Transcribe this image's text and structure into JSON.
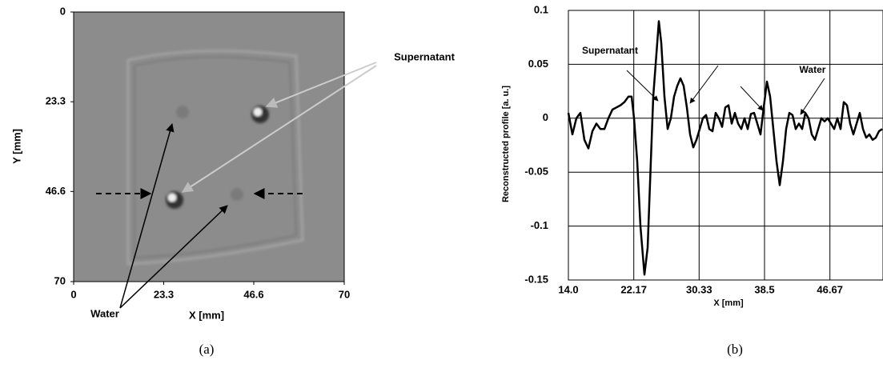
{
  "chart_data": [
    {
      "type": "image",
      "caption": "(a)",
      "xlabel": "X [mm]",
      "ylabel": "Y [mm]",
      "xlim": [
        0,
        70
      ],
      "ylim": [
        0,
        70
      ],
      "y_inverted": true,
      "xticks": [
        0,
        23.3,
        46.6,
        70
      ],
      "yticks": [
        0,
        23.3,
        46.6,
        70
      ],
      "annotations": [
        "Supernatant",
        "Water"
      ]
    },
    {
      "type": "line",
      "caption": "(b)",
      "xlabel": "X [mm]",
      "ylabel": "Reconstructed profile [a. u.]",
      "xlim": [
        14,
        53.3
      ],
      "ylim": [
        -0.15,
        0.1
      ],
      "xticks": [
        {
          "value": 14,
          "label": "14.0"
        },
        22.17,
        30.33,
        38.5,
        46.67
      ],
      "yticks": [
        0.1,
        0.05,
        0,
        -0.05,
        -0.1,
        -0.15
      ],
      "grid": true,
      "annotations": [
        "Supernatant",
        "Water"
      ],
      "x": [
        14.0,
        14.5,
        15.0,
        15.5,
        16.0,
        16.5,
        17.0,
        17.5,
        18.0,
        18.5,
        19.0,
        19.5,
        20.0,
        20.5,
        21.0,
        21.5,
        21.9,
        22.2,
        22.6,
        23.0,
        23.5,
        23.9,
        24.3,
        24.6,
        25.0,
        25.3,
        25.6,
        26.0,
        26.4,
        26.8,
        27.2,
        27.6,
        28.0,
        28.4,
        28.8,
        29.2,
        29.6,
        30.0,
        30.4,
        30.8,
        31.2,
        31.6,
        32.0,
        32.4,
        32.8,
        33.2,
        33.6,
        34.0,
        34.4,
        34.8,
        35.2,
        35.6,
        36.0,
        36.4,
        36.8,
        37.2,
        37.6,
        38.0,
        38.4,
        38.8,
        39.2,
        39.6,
        40.0,
        40.4,
        40.8,
        41.2,
        41.6,
        42.0,
        42.4,
        42.8,
        43.2,
        43.6,
        44.0,
        44.4,
        44.8,
        45.2,
        45.6,
        46.0,
        46.4,
        46.8,
        47.2,
        47.6,
        48.0,
        48.4,
        48.8,
        49.2,
        49.6,
        50.0,
        50.4,
        50.8,
        51.2,
        51.6,
        52.0,
        52.4,
        52.8,
        53.2
      ],
      "series": [
        {
          "color": "#000000",
          "values": [
            0.005,
            -0.015,
            0.0,
            0.005,
            -0.02,
            -0.028,
            -0.012,
            -0.005,
            -0.01,
            -0.01,
            0.0,
            0.008,
            0.01,
            0.012,
            0.015,
            0.02,
            0.02,
            0.0,
            -0.04,
            -0.1,
            -0.145,
            -0.12,
            -0.04,
            0.02,
            0.06,
            0.09,
            0.07,
            0.02,
            -0.01,
            0.0,
            0.02,
            0.03,
            0.037,
            0.03,
            0.01,
            -0.015,
            -0.027,
            -0.02,
            -0.01,
            0.0,
            0.003,
            -0.01,
            -0.012,
            0.005,
            0.0,
            -0.008,
            0.01,
            0.012,
            -0.005,
            0.005,
            -0.005,
            -0.01,
            0.0,
            -0.01,
            0.004,
            0.005,
            -0.005,
            -0.015,
            0.01,
            0.034,
            0.02,
            -0.01,
            -0.04,
            -0.062,
            -0.04,
            -0.01,
            0.005,
            0.003,
            -0.01,
            -0.005,
            -0.01,
            0.005,
            0.0,
            -0.015,
            -0.02,
            -0.01,
            0.0,
            -0.003,
            0.0,
            -0.005,
            -0.01,
            0.0,
            -0.01,
            0.015,
            0.012,
            -0.005,
            -0.015,
            -0.005,
            0.005,
            -0.01,
            -0.018,
            -0.015,
            -0.02,
            -0.018,
            -0.012,
            -0.01
          ]
        }
      ]
    }
  ]
}
